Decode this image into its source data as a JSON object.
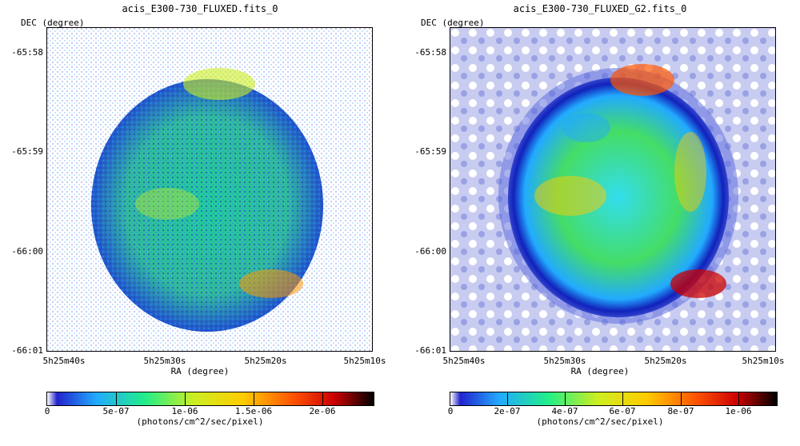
{
  "left": {
    "title": "acis_E300-730_FLUXED.fits_0",
    "dec_label": "DEC (degree)",
    "ra_label": "RA (degree)",
    "y_ticks": [
      "-65:58",
      "-65:59",
      "-66:00",
      "-66:01"
    ],
    "x_ticks": [
      "5h25m40s",
      "5h25m30s",
      "5h25m20s",
      "5h25m10s"
    ],
    "colorbar": {
      "ticks": [
        "0",
        "5e-07",
        "1e-06",
        "1.5e-06",
        "2e-06"
      ],
      "unit": "(photons/cm^2/sec/pixel)"
    }
  },
  "right": {
    "title": "acis_E300-730_FLUXED_G2.fits_0",
    "dec_label": "DEC (degree)",
    "ra_label": "RA (degree)",
    "y_ticks": [
      "-65:58",
      "-65:59",
      "-66:00",
      "-66:01"
    ],
    "x_ticks": [
      "5h25m40s",
      "5h25m30s",
      "5h25m20s",
      "5h25m10s"
    ],
    "colorbar": {
      "ticks": [
        "0",
        "2e-07",
        "4e-07",
        "6e-07",
        "8e-07",
        "1e-06"
      ],
      "unit": "(photons/cm^2/sec/pixel)"
    }
  },
  "colors": {
    "colormap": [
      "#ffffff",
      "#2222cc",
      "#22aaff",
      "#22ee88",
      "#ccee22",
      "#ffcc00",
      "#ff5500",
      "#cc0000",
      "#000000"
    ]
  }
}
